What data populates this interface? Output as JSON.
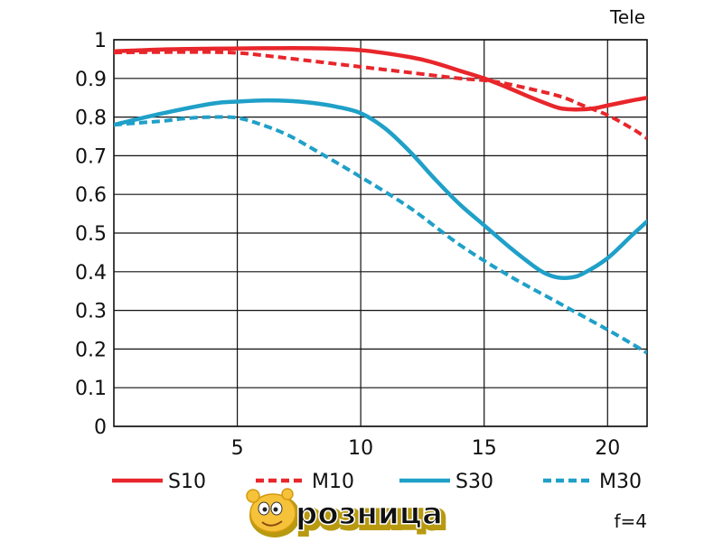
{
  "chart_data": {
    "type": "line",
    "title": "Tele",
    "note": "f=4",
    "xlabel": "",
    "ylabel": "",
    "xlim": [
      0,
      21.6
    ],
    "ylim": [
      0,
      1
    ],
    "grid": true,
    "legend_position": "bottom",
    "x_ticks": [
      5,
      10,
      15,
      20
    ],
    "x_tick_labels": [
      "5",
      "10",
      "15",
      "20"
    ],
    "y_ticks": [
      0,
      0.1,
      0.2,
      0.3,
      0.4,
      0.5,
      0.6,
      0.7,
      0.8,
      0.9,
      1
    ],
    "y_tick_labels": [
      "0",
      "0.1",
      "0.2",
      "0.3",
      "0.4",
      "0.5",
      "0.6",
      "0.7",
      "0.8",
      "0.9",
      "1"
    ],
    "series": [
      {
        "name": "S10",
        "color": "#e8262b",
        "style": "solid",
        "x": [
          0,
          2,
          4,
          6,
          8,
          10,
          12,
          13,
          14,
          15,
          16,
          17,
          18,
          18.5,
          19,
          19.5,
          20,
          21,
          21.6
        ],
        "y": [
          0.97,
          0.975,
          0.977,
          0.978,
          0.978,
          0.973,
          0.955,
          0.94,
          0.92,
          0.9,
          0.875,
          0.848,
          0.824,
          0.82,
          0.82,
          0.823,
          0.83,
          0.843,
          0.85
        ]
      },
      {
        "name": "M10",
        "color": "#e8262b",
        "style": "dashed",
        "x": [
          0,
          2,
          4,
          5,
          6,
          8,
          10,
          12,
          14,
          15,
          16,
          18,
          19,
          20,
          21,
          21.6
        ],
        "y": [
          0.967,
          0.968,
          0.968,
          0.966,
          0.96,
          0.945,
          0.93,
          0.915,
          0.9,
          0.895,
          0.885,
          0.855,
          0.83,
          0.805,
          0.77,
          0.745
        ]
      },
      {
        "name": "S30",
        "color": "#1fa0c8",
        "style": "solid",
        "x": [
          0,
          2,
          4,
          5,
          6,
          7,
          8,
          9,
          10,
          11,
          12,
          13,
          14,
          15,
          16,
          17,
          17.5,
          18,
          18.5,
          19,
          20,
          21,
          21.6
        ],
        "y": [
          0.78,
          0.81,
          0.835,
          0.84,
          0.843,
          0.842,
          0.837,
          0.827,
          0.81,
          0.77,
          0.71,
          0.64,
          0.575,
          0.52,
          0.465,
          0.415,
          0.395,
          0.385,
          0.385,
          0.395,
          0.435,
          0.495,
          0.53
        ]
      },
      {
        "name": "M30",
        "color": "#1fa0c8",
        "style": "dashed",
        "x": [
          0,
          1,
          2,
          3,
          4,
          5,
          6,
          7,
          8,
          10,
          12,
          14,
          16,
          18,
          19,
          20,
          21,
          21.6
        ],
        "y": [
          0.78,
          0.785,
          0.79,
          0.797,
          0.8,
          0.798,
          0.78,
          0.755,
          0.72,
          0.645,
          0.565,
          0.47,
          0.39,
          0.32,
          0.285,
          0.25,
          0.213,
          0.19
        ]
      }
    ]
  },
  "logo": {
    "text": "розница",
    "colors": {
      "fill": "#e8262b",
      "outline": "#ffffff",
      "shadow": "#b89a10",
      "face": "#f5c23a"
    }
  },
  "colors": {
    "axis": "#111111",
    "grid": "#111111",
    "background": "#ffffff"
  }
}
